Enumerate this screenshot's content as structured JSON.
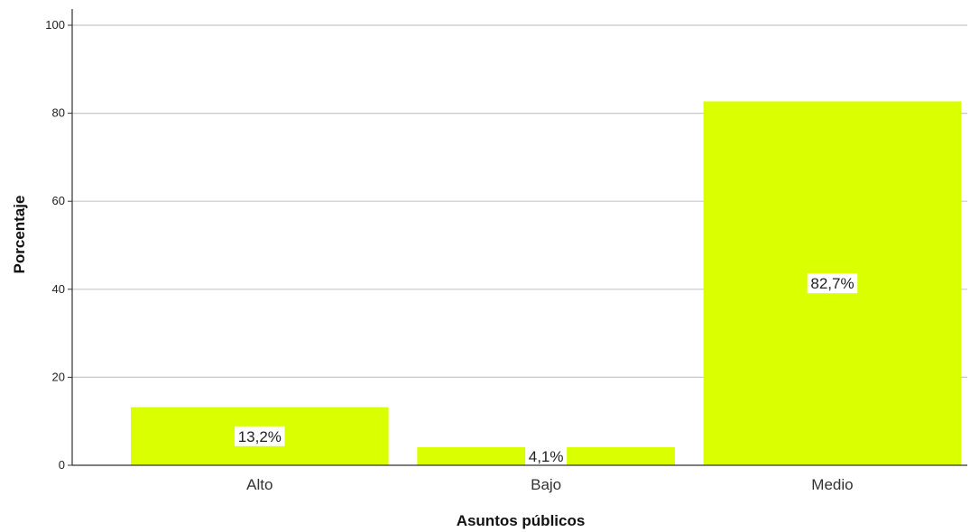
{
  "chart_data": {
    "type": "bar",
    "categories": [
      "Alto",
      "Bajo",
      "Medio"
    ],
    "values": [
      13.2,
      4.1,
      82.7
    ],
    "data_labels": [
      "13,2%",
      "4,1%",
      "82,7%"
    ],
    "xlabel": "Asuntos públicos",
    "ylabel": "Porcentaje",
    "ylim": [
      0,
      100
    ],
    "yticks": [
      0,
      20,
      40,
      60,
      80,
      100
    ],
    "grid": true,
    "bar_color": "#d9ff00",
    "grid_color": "#c8c8c8"
  }
}
